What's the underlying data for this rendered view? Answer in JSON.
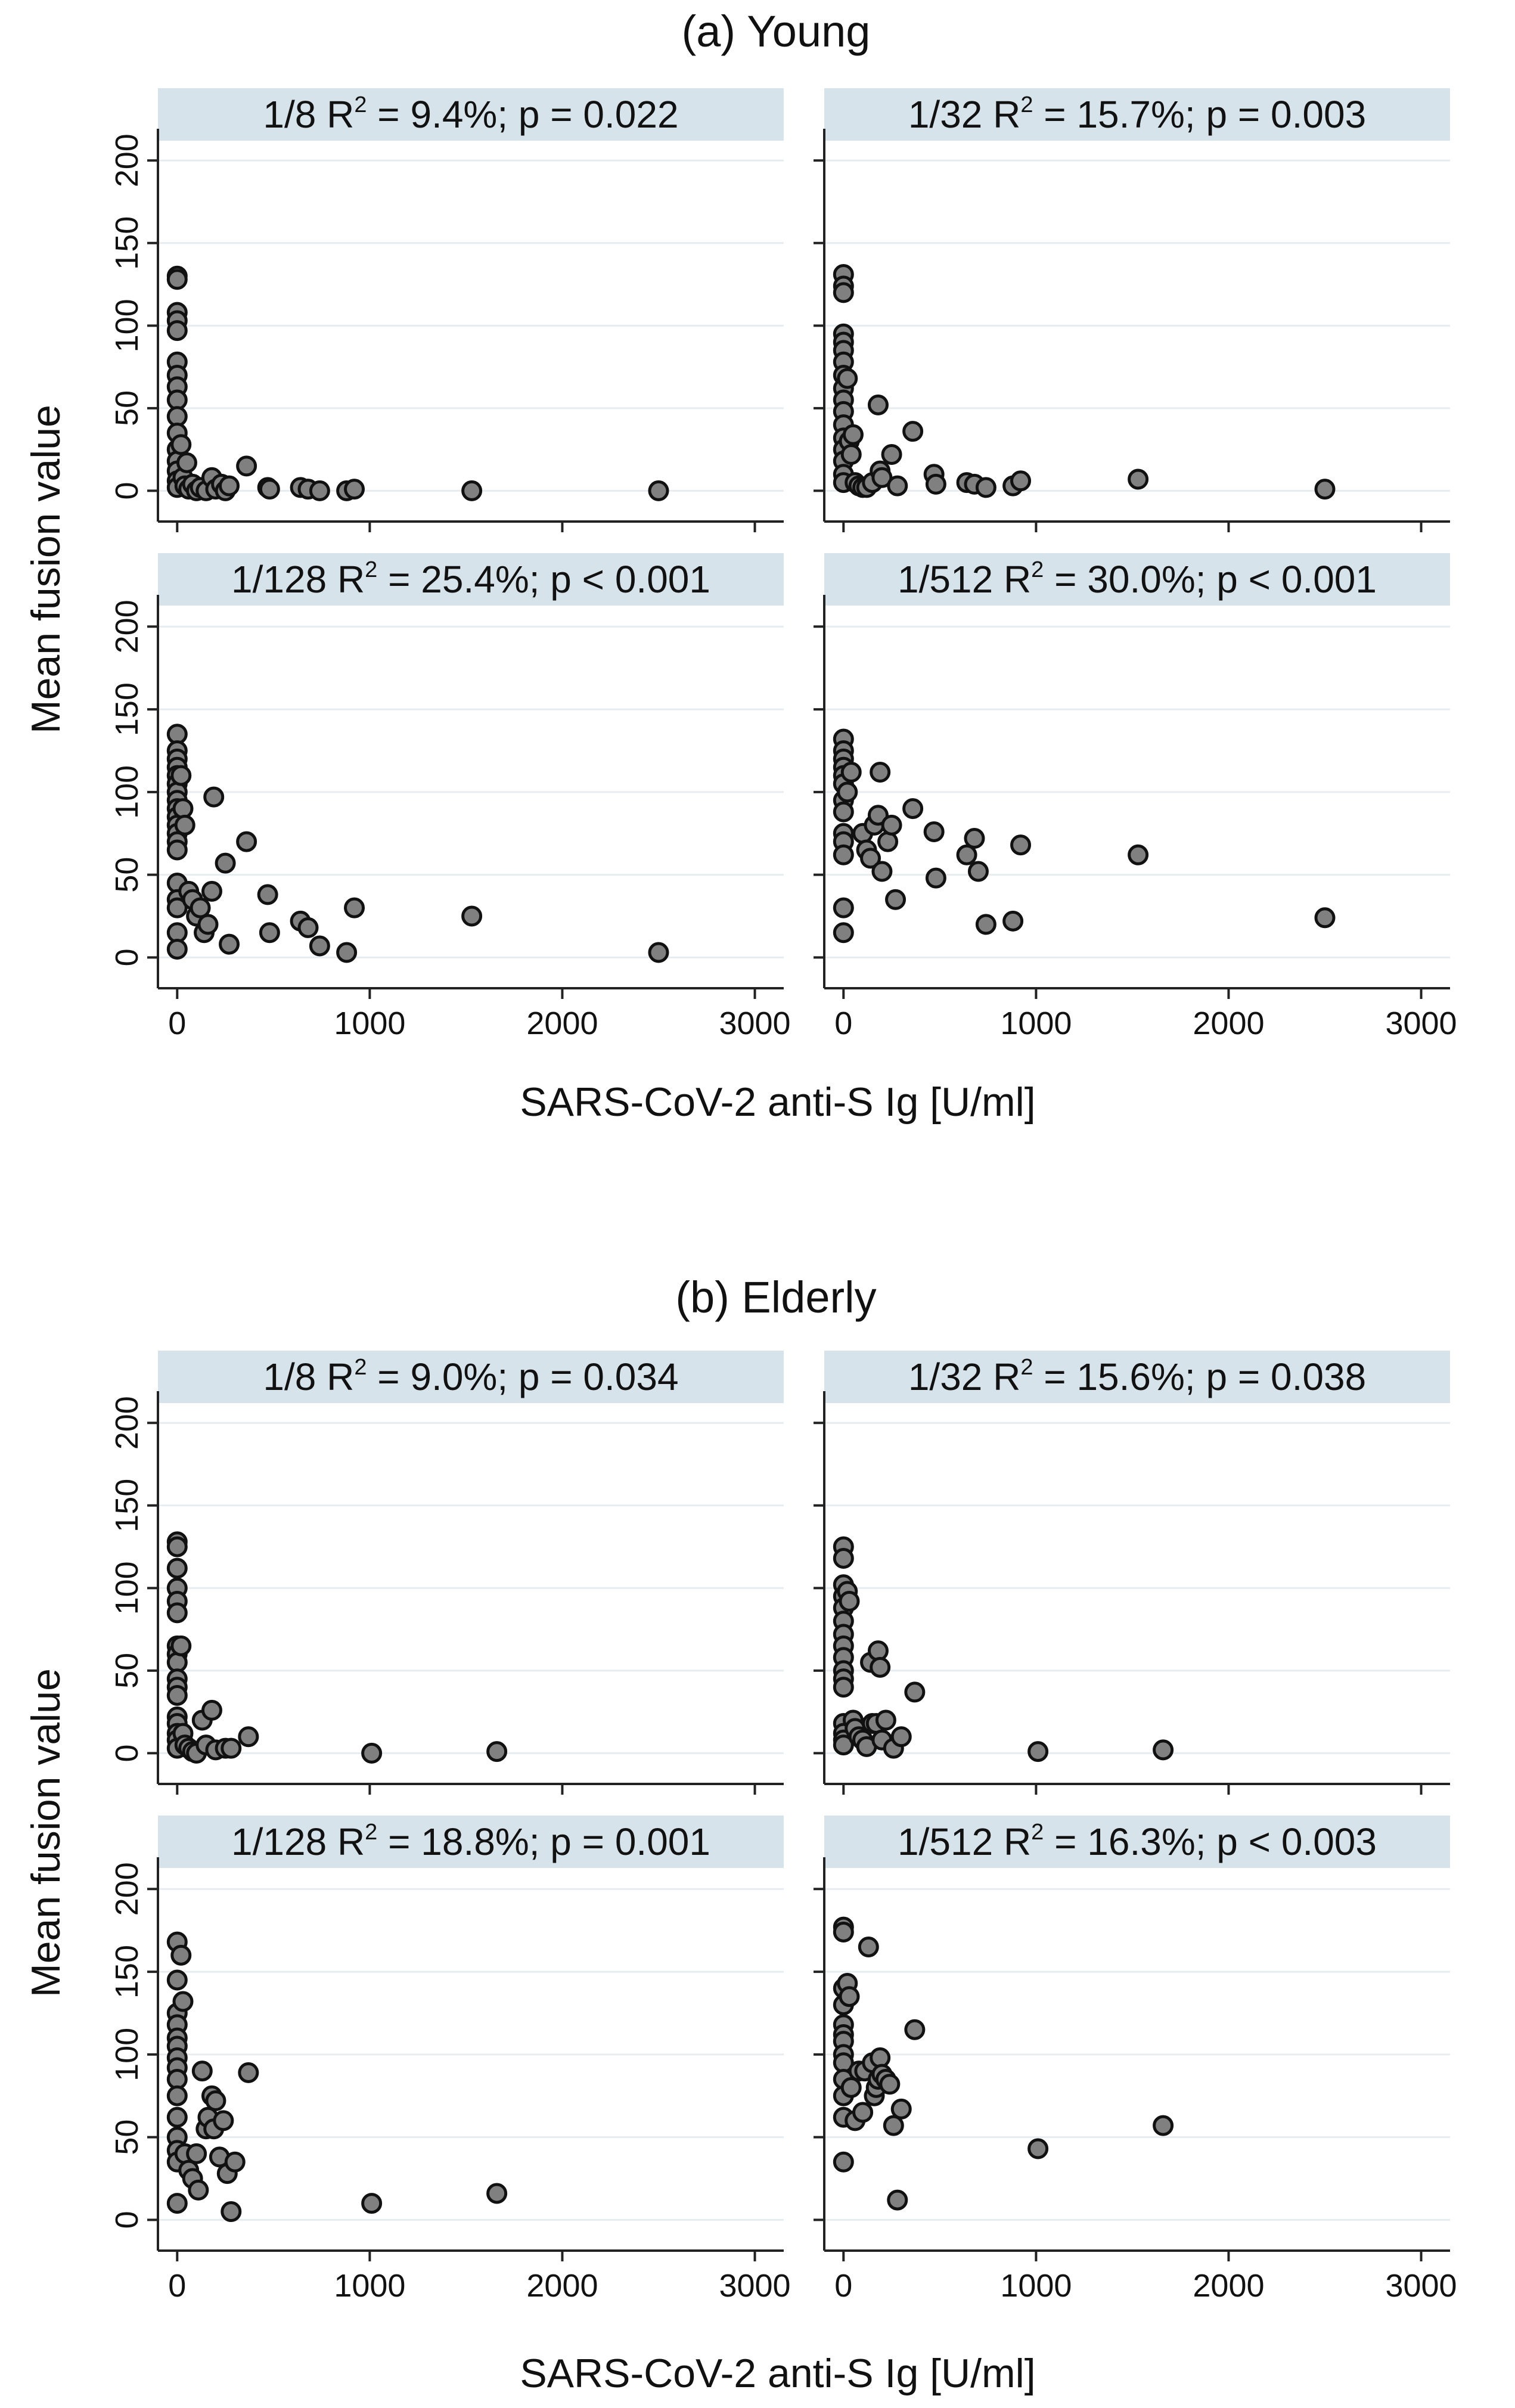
{
  "figure": {
    "section_a_title": "(a) Young",
    "section_b_title": "(b) Elderly",
    "ylabel": "Mean fusion value",
    "xlabel": "SARS-CoV-2 anti-S Ig [U/ml]",
    "x_ticks": [
      0,
      1000,
      2000,
      3000
    ],
    "y_ticks": [
      0,
      50,
      100,
      150,
      200
    ]
  },
  "chart_data": [
    {
      "type": "scatter",
      "group": "(a) Young",
      "dilution": "1/8",
      "strip_main": "1/8  R",
      "strip_sup": "2",
      "strip_rest": " =  9.4%; p = 0.022",
      "xlabel": "SARS-CoV-2 anti-S Ig [U/ml]",
      "ylabel": "Mean fusion value",
      "xlim": [
        -100,
        3150
      ],
      "ylim": [
        -15,
        212
      ],
      "points": [
        [
          0,
          130
        ],
        [
          0,
          128
        ],
        [
          0,
          108
        ],
        [
          0,
          103
        ],
        [
          0,
          97
        ],
        [
          0,
          78
        ],
        [
          0,
          70
        ],
        [
          0,
          63
        ],
        [
          0,
          55
        ],
        [
          0,
          45
        ],
        [
          0,
          35
        ],
        [
          0,
          25
        ],
        [
          0,
          18
        ],
        [
          0,
          12
        ],
        [
          0,
          6
        ],
        [
          0,
          2
        ],
        [
          20,
          28
        ],
        [
          30,
          8
        ],
        [
          40,
          3
        ],
        [
          50,
          17
        ],
        [
          60,
          1
        ],
        [
          80,
          4
        ],
        [
          100,
          0
        ],
        [
          120,
          2
        ],
        [
          150,
          0
        ],
        [
          180,
          8
        ],
        [
          200,
          1
        ],
        [
          230,
          4
        ],
        [
          250,
          0
        ],
        [
          270,
          3
        ],
        [
          360,
          15
        ],
        [
          470,
          2
        ],
        [
          480,
          1
        ],
        [
          640,
          2
        ],
        [
          680,
          1
        ],
        [
          740,
          0
        ],
        [
          880,
          0
        ],
        [
          920,
          1
        ],
        [
          1530,
          0
        ],
        [
          2500,
          0
        ]
      ]
    },
    {
      "type": "scatter",
      "group": "(a) Young",
      "dilution": "1/32",
      "strip_main": "1/32  R",
      "strip_sup": "2",
      "strip_rest": " = 15.7%; p = 0.003",
      "xlabel": "SARS-CoV-2 anti-S Ig [U/ml]",
      "ylabel": "Mean fusion value",
      "xlim": [
        -100,
        3150
      ],
      "ylim": [
        -15,
        212
      ],
      "points": [
        [
          0,
          131
        ],
        [
          0,
          124
        ],
        [
          0,
          120
        ],
        [
          0,
          95
        ],
        [
          0,
          90
        ],
        [
          0,
          85
        ],
        [
          0,
          78
        ],
        [
          0,
          70
        ],
        [
          0,
          62
        ],
        [
          0,
          55
        ],
        [
          0,
          48
        ],
        [
          0,
          40
        ],
        [
          0,
          32
        ],
        [
          0,
          25
        ],
        [
          0,
          18
        ],
        [
          0,
          10
        ],
        [
          0,
          5
        ],
        [
          20,
          68
        ],
        [
          30,
          30
        ],
        [
          40,
          22
        ],
        [
          50,
          34
        ],
        [
          60,
          5
        ],
        [
          80,
          3
        ],
        [
          100,
          2
        ],
        [
          120,
          2
        ],
        [
          150,
          5
        ],
        [
          180,
          52
        ],
        [
          190,
          12
        ],
        [
          200,
          8
        ],
        [
          250,
          22
        ],
        [
          280,
          3
        ],
        [
          360,
          36
        ],
        [
          470,
          10
        ],
        [
          480,
          4
        ],
        [
          640,
          5
        ],
        [
          680,
          4
        ],
        [
          740,
          2
        ],
        [
          880,
          3
        ],
        [
          920,
          6
        ],
        [
          1530,
          7
        ],
        [
          2500,
          1
        ]
      ]
    },
    {
      "type": "scatter",
      "group": "(a) Young",
      "dilution": "1/128",
      "strip_main": "1/128  R",
      "strip_sup": "2",
      "strip_rest": " = 25.4%; p < 0.001",
      "xlabel": "SARS-CoV-2 anti-S Ig [U/ml]",
      "ylabel": "Mean fusion value",
      "xlim": [
        -100,
        3150
      ],
      "ylim": [
        -15,
        212
      ],
      "points": [
        [
          0,
          135
        ],
        [
          0,
          125
        ],
        [
          0,
          120
        ],
        [
          0,
          115
        ],
        [
          0,
          110
        ],
        [
          0,
          105
        ],
        [
          0,
          100
        ],
        [
          0,
          95
        ],
        [
          0,
          90
        ],
        [
          0,
          85
        ],
        [
          0,
          80
        ],
        [
          0,
          75
        ],
        [
          0,
          70
        ],
        [
          0,
          65
        ],
        [
          0,
          45
        ],
        [
          0,
          35
        ],
        [
          0,
          30
        ],
        [
          0,
          15
        ],
        [
          0,
          5
        ],
        [
          20,
          110
        ],
        [
          30,
          90
        ],
        [
          40,
          80
        ],
        [
          60,
          40
        ],
        [
          80,
          35
        ],
        [
          100,
          25
        ],
        [
          120,
          30
        ],
        [
          140,
          15
        ],
        [
          160,
          20
        ],
        [
          180,
          40
        ],
        [
          190,
          97
        ],
        [
          250,
          57
        ],
        [
          270,
          8
        ],
        [
          360,
          70
        ],
        [
          470,
          38
        ],
        [
          480,
          15
        ],
        [
          640,
          22
        ],
        [
          680,
          18
        ],
        [
          740,
          7
        ],
        [
          880,
          3
        ],
        [
          920,
          30
        ],
        [
          1530,
          25
        ],
        [
          2500,
          3
        ]
      ]
    },
    {
      "type": "scatter",
      "group": "(a) Young",
      "dilution": "1/512",
      "strip_main": "1/512  R",
      "strip_sup": "2",
      "strip_rest": " = 30.0%; p < 0.001",
      "xlabel": "SARS-CoV-2 anti-S Ig [U/ml]",
      "ylabel": "Mean fusion value",
      "xlim": [
        -100,
        3150
      ],
      "ylim": [
        -15,
        212
      ],
      "points": [
        [
          0,
          132
        ],
        [
          0,
          125
        ],
        [
          0,
          120
        ],
        [
          0,
          115
        ],
        [
          0,
          110
        ],
        [
          0,
          105
        ],
        [
          0,
          95
        ],
        [
          0,
          88
        ],
        [
          0,
          75
        ],
        [
          0,
          70
        ],
        [
          0,
          62
        ],
        [
          0,
          30
        ],
        [
          0,
          15
        ],
        [
          20,
          100
        ],
        [
          40,
          112
        ],
        [
          100,
          75
        ],
        [
          120,
          65
        ],
        [
          140,
          60
        ],
        [
          160,
          80
        ],
        [
          180,
          86
        ],
        [
          190,
          112
        ],
        [
          200,
          52
        ],
        [
          230,
          70
        ],
        [
          250,
          80
        ],
        [
          270,
          35
        ],
        [
          360,
          90
        ],
        [
          470,
          76
        ],
        [
          480,
          48
        ],
        [
          640,
          62
        ],
        [
          680,
          72
        ],
        [
          700,
          52
        ],
        [
          740,
          20
        ],
        [
          880,
          22
        ],
        [
          920,
          68
        ],
        [
          1530,
          62
        ],
        [
          2500,
          24
        ]
      ]
    },
    {
      "type": "scatter",
      "group": "(b) Elderly",
      "dilution": "1/8",
      "strip_main": "1/8  R",
      "strip_sup": "2",
      "strip_rest": " =  9.0%; p = 0.034",
      "xlabel": "SARS-CoV-2 anti-S Ig [U/ml]",
      "ylabel": "Mean fusion value",
      "xlim": [
        -100,
        3150
      ],
      "ylim": [
        -15,
        212
      ],
      "points": [
        [
          0,
          128
        ],
        [
          0,
          125
        ],
        [
          0,
          112
        ],
        [
          0,
          100
        ],
        [
          0,
          92
        ],
        [
          0,
          85
        ],
        [
          0,
          65
        ],
        [
          0,
          60
        ],
        [
          0,
          55
        ],
        [
          0,
          45
        ],
        [
          0,
          40
        ],
        [
          0,
          35
        ],
        [
          0,
          22
        ],
        [
          0,
          18
        ],
        [
          0,
          12
        ],
        [
          0,
          8
        ],
        [
          0,
          3
        ],
        [
          20,
          65
        ],
        [
          30,
          12
        ],
        [
          40,
          5
        ],
        [
          60,
          3
        ],
        [
          80,
          1
        ],
        [
          100,
          0
        ],
        [
          130,
          20
        ],
        [
          150,
          5
        ],
        [
          180,
          26
        ],
        [
          200,
          2
        ],
        [
          250,
          3
        ],
        [
          280,
          3
        ],
        [
          370,
          10
        ],
        [
          1010,
          0
        ],
        [
          1660,
          1
        ]
      ]
    },
    {
      "type": "scatter",
      "group": "(b) Elderly",
      "dilution": "1/32",
      "strip_main": "1/32  R",
      "strip_sup": "2",
      "strip_rest": " = 15.6%; p = 0.038",
      "xlabel": "SARS-CoV-2 anti-S Ig [U/ml]",
      "ylabel": "Mean fusion value",
      "xlim": [
        -100,
        3150
      ],
      "ylim": [
        -15,
        212
      ],
      "points": [
        [
          0,
          125
        ],
        [
          0,
          118
        ],
        [
          0,
          102
        ],
        [
          0,
          95
        ],
        [
          0,
          88
        ],
        [
          0,
          80
        ],
        [
          0,
          72
        ],
        [
          0,
          65
        ],
        [
          0,
          58
        ],
        [
          0,
          50
        ],
        [
          0,
          45
        ],
        [
          0,
          40
        ],
        [
          0,
          18
        ],
        [
          0,
          12
        ],
        [
          0,
          8
        ],
        [
          0,
          5
        ],
        [
          20,
          98
        ],
        [
          30,
          92
        ],
        [
          50,
          20
        ],
        [
          60,
          15
        ],
        [
          80,
          10
        ],
        [
          100,
          8
        ],
        [
          120,
          4
        ],
        [
          140,
          55
        ],
        [
          150,
          18
        ],
        [
          170,
          18
        ],
        [
          180,
          62
        ],
        [
          190,
          52
        ],
        [
          200,
          8
        ],
        [
          220,
          20
        ],
        [
          260,
          3
        ],
        [
          300,
          10
        ],
        [
          370,
          37
        ],
        [
          1010,
          1
        ],
        [
          1660,
          2
        ]
      ]
    },
    {
      "type": "scatter",
      "group": "(b) Elderly",
      "dilution": "1/128",
      "strip_main": "1/128  R",
      "strip_sup": "2",
      "strip_rest": " = 18.8%; p = 0.001",
      "xlabel": "SARS-CoV-2 anti-S Ig [U/ml]",
      "ylabel": "Mean fusion value",
      "xlim": [
        -100,
        3150
      ],
      "ylim": [
        -15,
        212
      ],
      "points": [
        [
          0,
          168
        ],
        [
          0,
          145
        ],
        [
          0,
          125
        ],
        [
          0,
          118
        ],
        [
          0,
          110
        ],
        [
          0,
          105
        ],
        [
          0,
          98
        ],
        [
          0,
          92
        ],
        [
          0,
          85
        ],
        [
          0,
          75
        ],
        [
          0,
          62
        ],
        [
          0,
          50
        ],
        [
          0,
          42
        ],
        [
          0,
          35
        ],
        [
          0,
          10
        ],
        [
          20,
          160
        ],
        [
          30,
          132
        ],
        [
          40,
          40
        ],
        [
          60,
          30
        ],
        [
          80,
          25
        ],
        [
          100,
          40
        ],
        [
          110,
          18
        ],
        [
          130,
          90
        ],
        [
          150,
          55
        ],
        [
          160,
          62
        ],
        [
          180,
          75
        ],
        [
          190,
          55
        ],
        [
          200,
          72
        ],
        [
          220,
          38
        ],
        [
          240,
          60
        ],
        [
          260,
          28
        ],
        [
          280,
          5
        ],
        [
          300,
          35
        ],
        [
          370,
          89
        ],
        [
          1010,
          10
        ],
        [
          1660,
          16
        ]
      ]
    },
    {
      "type": "scatter",
      "group": "(b) Elderly",
      "dilution": "1/512",
      "strip_main": "1/512  R",
      "strip_sup": "2",
      "strip_rest": " = 16.3%; p < 0.003",
      "xlabel": "SARS-CoV-2 anti-S Ig [U/ml]",
      "ylabel": "Mean fusion value",
      "xlim": [
        -100,
        3150
      ],
      "ylim": [
        -15,
        212
      ],
      "points": [
        [
          0,
          177
        ],
        [
          0,
          174
        ],
        [
          0,
          140
        ],
        [
          0,
          130
        ],
        [
          0,
          118
        ],
        [
          0,
          112
        ],
        [
          0,
          108
        ],
        [
          0,
          100
        ],
        [
          0,
          95
        ],
        [
          0,
          85
        ],
        [
          0,
          75
        ],
        [
          0,
          62
        ],
        [
          0,
          35
        ],
        [
          20,
          143
        ],
        [
          30,
          135
        ],
        [
          40,
          80
        ],
        [
          60,
          60
        ],
        [
          80,
          90
        ],
        [
          100,
          65
        ],
        [
          110,
          90
        ],
        [
          130,
          165
        ],
        [
          150,
          95
        ],
        [
          160,
          75
        ],
        [
          170,
          80
        ],
        [
          180,
          85
        ],
        [
          190,
          98
        ],
        [
          200,
          88
        ],
        [
          220,
          85
        ],
        [
          240,
          82
        ],
        [
          260,
          57
        ],
        [
          280,
          12
        ],
        [
          300,
          67
        ],
        [
          370,
          115
        ],
        [
          1010,
          43
        ],
        [
          1660,
          57
        ]
      ]
    }
  ]
}
